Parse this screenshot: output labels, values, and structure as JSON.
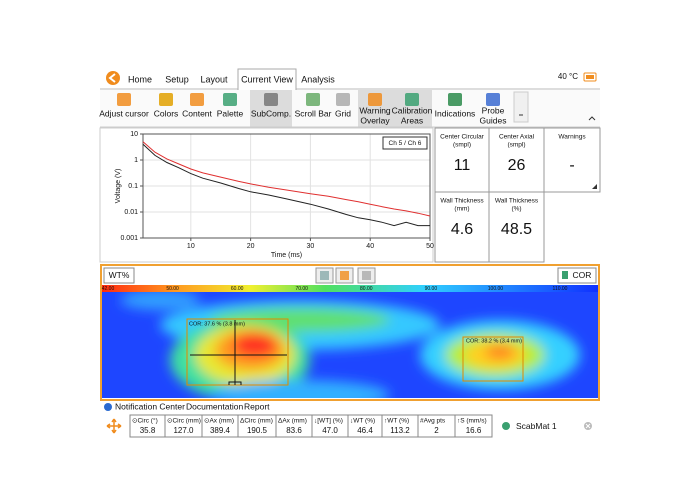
{
  "header": {
    "tabs": [
      "Home",
      "Setup",
      "Layout",
      "Current View",
      "Analysis"
    ],
    "temperature": "40 °C"
  },
  "toolbar": {
    "buttons": [
      [
        "Adjust cursor"
      ],
      [
        "Colors"
      ],
      [
        "Content"
      ],
      [
        "Palette"
      ],
      [
        "SubComp."
      ],
      [
        "Scroll Bar"
      ],
      [
        "Grid"
      ],
      [
        "Warning",
        "Overlay"
      ],
      [
        "Calibration",
        "Areas"
      ],
      [
        "Indications"
      ],
      [
        "Probe",
        "Guides"
      ]
    ]
  },
  "chart_data": {
    "type": "line",
    "xlabel": "Time (ms)",
    "ylabel": "Voltage (V)",
    "channel_label": "Ch 5 / Ch 6",
    "x": [
      2,
      4,
      6,
      8,
      10,
      12,
      15,
      18,
      20,
      23,
      26,
      30,
      33,
      36,
      38,
      40,
      42,
      44,
      46,
      48,
      50
    ],
    "series": [
      {
        "color": "#222222",
        "values": [
          4,
          1.5,
          0.8,
          0.5,
          0.3,
          0.2,
          0.13,
          0.08,
          0.06,
          0.045,
          0.032,
          0.02,
          0.013,
          0.008,
          0.006,
          0.005,
          0.004,
          0.003,
          0.004,
          0.003,
          0.003
        ]
      },
      {
        "color": "#e03030",
        "values": [
          5,
          2,
          1.1,
          0.7,
          0.45,
          0.32,
          0.22,
          0.15,
          0.12,
          0.09,
          0.07,
          0.05,
          0.04,
          0.03,
          0.025,
          0.02,
          0.016,
          0.013,
          0.011,
          0.009,
          0.007
        ]
      }
    ],
    "xlim": [
      2,
      50
    ],
    "xticks": [
      10,
      20,
      30,
      40,
      50
    ],
    "ylim": [
      0.001,
      10
    ],
    "yticks": [
      10,
      1,
      0.1,
      0.01,
      0.001
    ],
    "log_y": true,
    "grid": true
  },
  "indicators": [
    {
      "label": [
        "Center Circular",
        "(smpl)"
      ],
      "value": "11"
    },
    {
      "label": [
        "Center Axial",
        "(smpl)"
      ],
      "value": "26"
    },
    {
      "label": [
        "Warnings"
      ],
      "value": "-"
    },
    {
      "label": [
        "Wall Thickness",
        "(mm)"
      ],
      "value": "4.6"
    },
    {
      "label": [
        "Wall Thickness",
        "(%)"
      ],
      "value": "48.5"
    }
  ],
  "cscan": {
    "mode": "WT%",
    "cor_button": "COR",
    "scale_labels": [
      "42.00",
      "50.00",
      "60.00",
      "70.00",
      "80.00",
      "90.00",
      "100.00",
      "110.00"
    ],
    "cursors": [
      "COR: 37.6 % (3.8 mm)",
      "COR: 38.2 % (3.4 mm)"
    ]
  },
  "bottom_tabs": [
    "Notification Center",
    "Documentation",
    "Report"
  ],
  "measurements": {
    "headers": [
      "⊙Circ (°)",
      "⊙Circ (mm)",
      "⊙Ax (mm)",
      "ΔCirc (mm)",
      "ΔAx (mm)",
      "↓[WT] (%)",
      "↓WT (%)",
      "↑WT (%)",
      "#Avg pts",
      "↑S (mm/s)"
    ],
    "values": [
      "35.8",
      "127.0",
      "389.4",
      "190.5",
      "83.6",
      "47.0",
      "46.4",
      "113.2",
      "2",
      "16.6"
    ]
  },
  "setup_name": "ScabMat 1"
}
